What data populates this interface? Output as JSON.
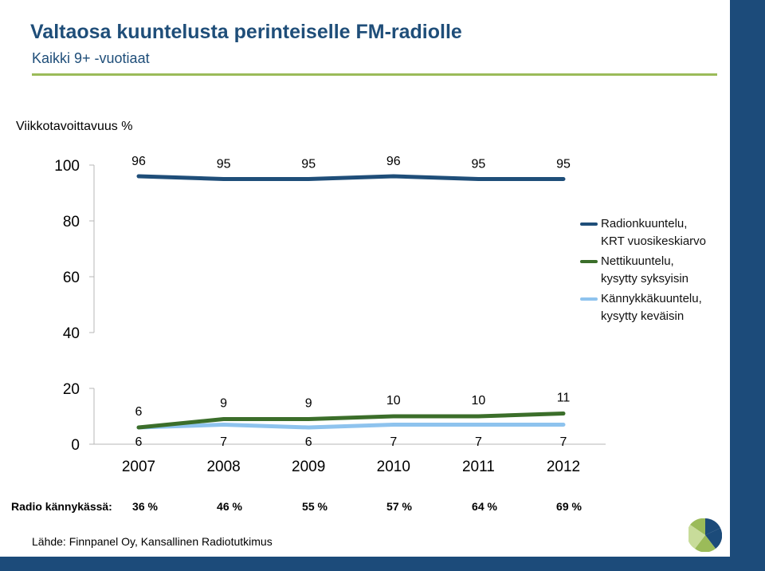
{
  "header": {
    "title": "Valtaosa kuuntelusta perinteiselle FM-radiolle",
    "subtitle": "Kaikki 9+ -vuotiaat"
  },
  "colors": {
    "brand_blue": "#1c4b7a",
    "accent_green": "#9bbb59"
  },
  "chart_data": {
    "type": "line",
    "ylabel": "Viikkotavoittavuus %",
    "x": [
      "2007",
      "2008",
      "2009",
      "2010",
      "2011",
      "2012"
    ],
    "y_ticks": [
      "100",
      "80",
      "60",
      "40",
      "20",
      "0"
    ],
    "y_scale": "broken axis between 20 and 40",
    "grid": false,
    "legend_position": "right",
    "series": [
      {
        "name": "Radionkuuntelu,\nKRT vuosikeskiarvo",
        "color": "#1f4e79",
        "values": [
          96,
          95,
          95,
          96,
          95,
          95
        ],
        "labels": [
          "96",
          "95",
          "95",
          "96",
          "95",
          "95"
        ]
      },
      {
        "name": "Nettikuuntelu,\nkysytty syksyisin",
        "color": "#3b6e2a",
        "values": [
          6,
          9,
          9,
          10,
          10,
          11
        ],
        "labels": [
          "6",
          "9",
          "9",
          "10",
          "10",
          "11"
        ]
      },
      {
        "name": "Kännykkäkuuntelu,\nkysytty keväisin",
        "color": "#8ec3ee",
        "values": [
          6,
          7,
          6,
          7,
          7,
          7
        ],
        "labels": [
          "6",
          "7",
          "6",
          "7",
          "7",
          "7"
        ]
      }
    ]
  },
  "radio_mobile": {
    "label": "Radio kännykässä:",
    "values": [
      "36 %",
      "46 %",
      "55 %",
      "57 %",
      "64 %",
      "69 %"
    ]
  },
  "source": "Lähde: Finnpanel Oy, Kansallinen Radiotutkimus"
}
